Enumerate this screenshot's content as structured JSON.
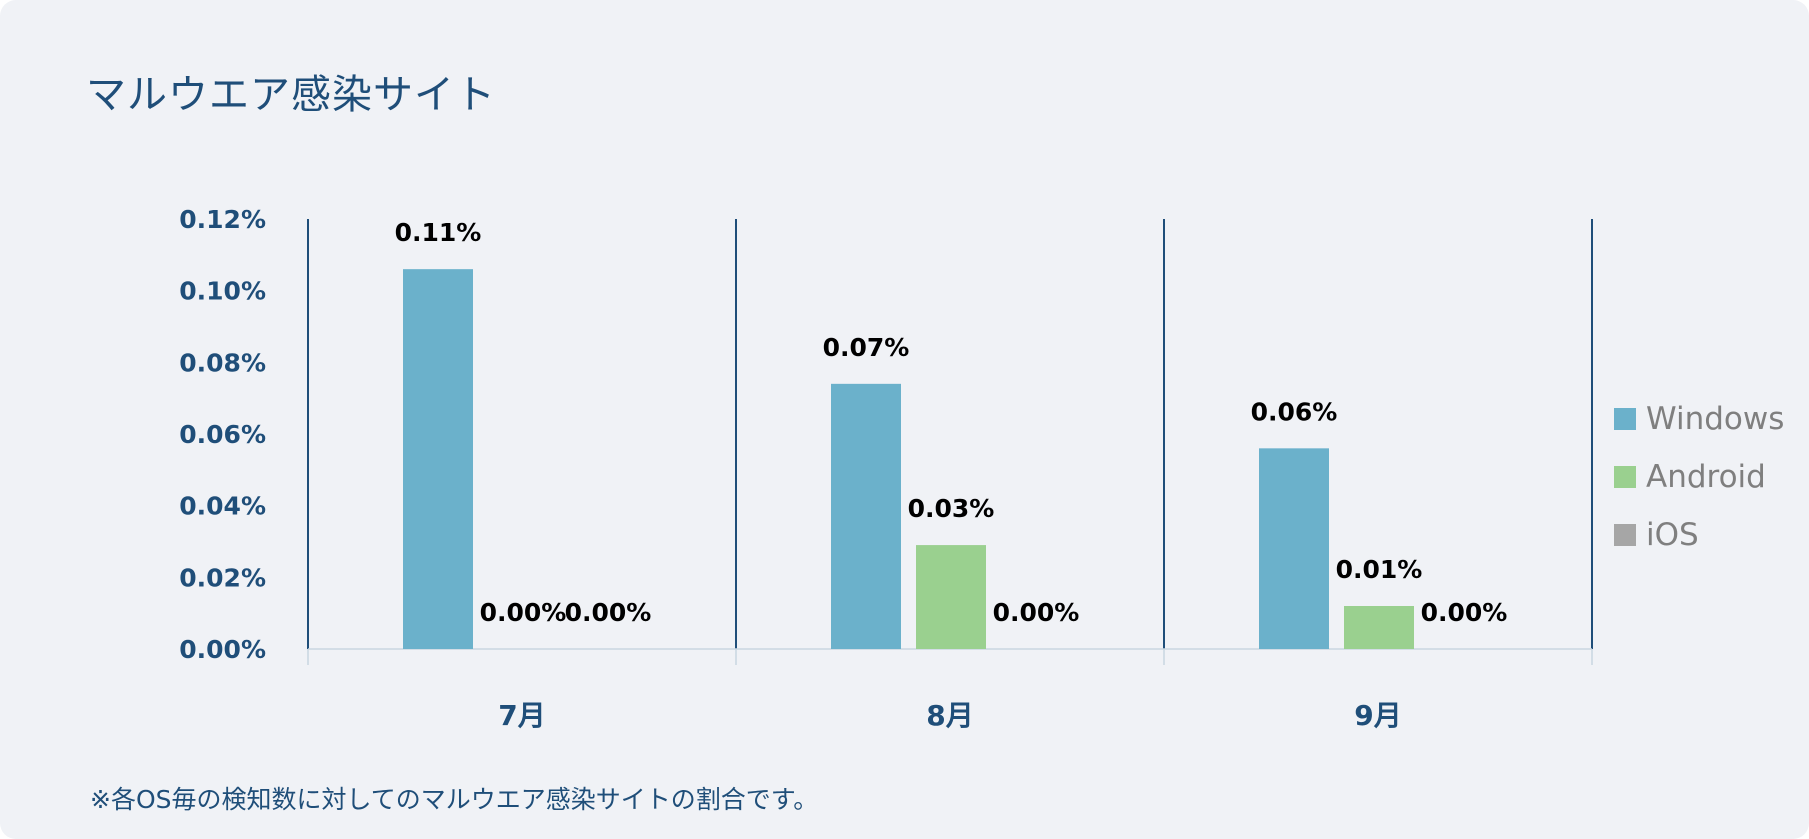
{
  "title": "マルウエア感染サイト",
  "footnote": "※各OS毎の検知数に対してのマルウエア感染サイトの割合です。",
  "colors": {
    "Windows": "#6bb1cb",
    "Android": "#9ad08f",
    "iOS": "#a6a6a6",
    "axis_text": "#1f4e79",
    "value_label": "#000000"
  },
  "chart_data": {
    "type": "bar",
    "categories": [
      "7月",
      "8月",
      "9月"
    ],
    "series": [
      {
        "name": "Windows",
        "values": [
          0.00106,
          0.00074,
          0.00056
        ],
        "labels": [
          "0.11%",
          "0.07%",
          "0.06%"
        ]
      },
      {
        "name": "Android",
        "values": [
          0.0,
          0.00029,
          0.00012
        ],
        "labels": [
          "0.00%",
          "0.03%",
          "0.01%"
        ]
      },
      {
        "name": "iOS",
        "values": [
          0.0,
          0.0,
          0.0
        ],
        "labels": [
          "0.00%",
          "0.00%",
          "0.00%"
        ]
      }
    ],
    "y_ticks": [
      "0.00%",
      "0.02%",
      "0.04%",
      "0.06%",
      "0.08%",
      "0.10%",
      "0.12%"
    ],
    "ylim": [
      0,
      0.0012
    ],
    "grid": false,
    "legend_position": "right"
  }
}
